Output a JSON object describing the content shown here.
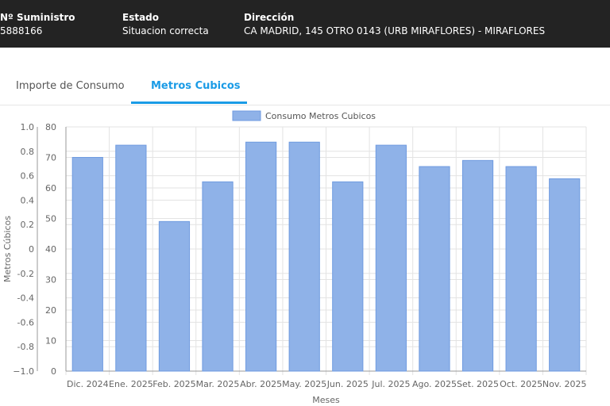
{
  "header": {
    "supply_label": "Nº Suministro",
    "supply_value": "5888166",
    "status_label": "Estado",
    "status_value": "Situacion correcta",
    "address_label": "Dirección",
    "address_value": "CA MADRID, 145 OTRO 0143 (URB MIRAFLORES) - MIRAFLORES"
  },
  "tabs": [
    {
      "label": "Importe de Consumo",
      "active": false
    },
    {
      "label": "Metros Cubicos",
      "active": true
    }
  ],
  "colors": {
    "accent": "#1a9be6",
    "bar_fill": "#8fb2e8",
    "bar_stroke": "#6f9be0",
    "header_bg": "#232323"
  },
  "chart_data": {
    "type": "bar",
    "title": "",
    "legend": "Consumo Metros Cubicos",
    "legend_placement": "top-center",
    "xlabel": "Meses",
    "ylabel": "Metros Cúbicos",
    "categories": [
      "Dic. 2024",
      "Ene. 2025",
      "Feb. 2025",
      "Mar. 2025",
      "Abr. 2025",
      "May. 2025",
      "Jun. 2025",
      "Jul. 2025",
      "Ago. 2025",
      "Set. 2025",
      "Oct. 2025",
      "Nov. 2025"
    ],
    "values": [
      70,
      74,
      49,
      62,
      75,
      75,
      62,
      74,
      67,
      69,
      67,
      63
    ],
    "ylim": [
      0,
      80
    ],
    "yticks": [
      "0",
      "10",
      "20",
      "30",
      "40",
      "50",
      "60",
      "70",
      "80"
    ],
    "secondary_ylim": [
      -1.0,
      1.0
    ],
    "secondary_yticks": [
      "−1.0",
      "-0.8",
      "-0.6",
      "-0.4",
      "-0.2",
      "0",
      "0.2",
      "0.4",
      "0.6",
      "0.8",
      "1.0"
    ],
    "grid": true
  }
}
